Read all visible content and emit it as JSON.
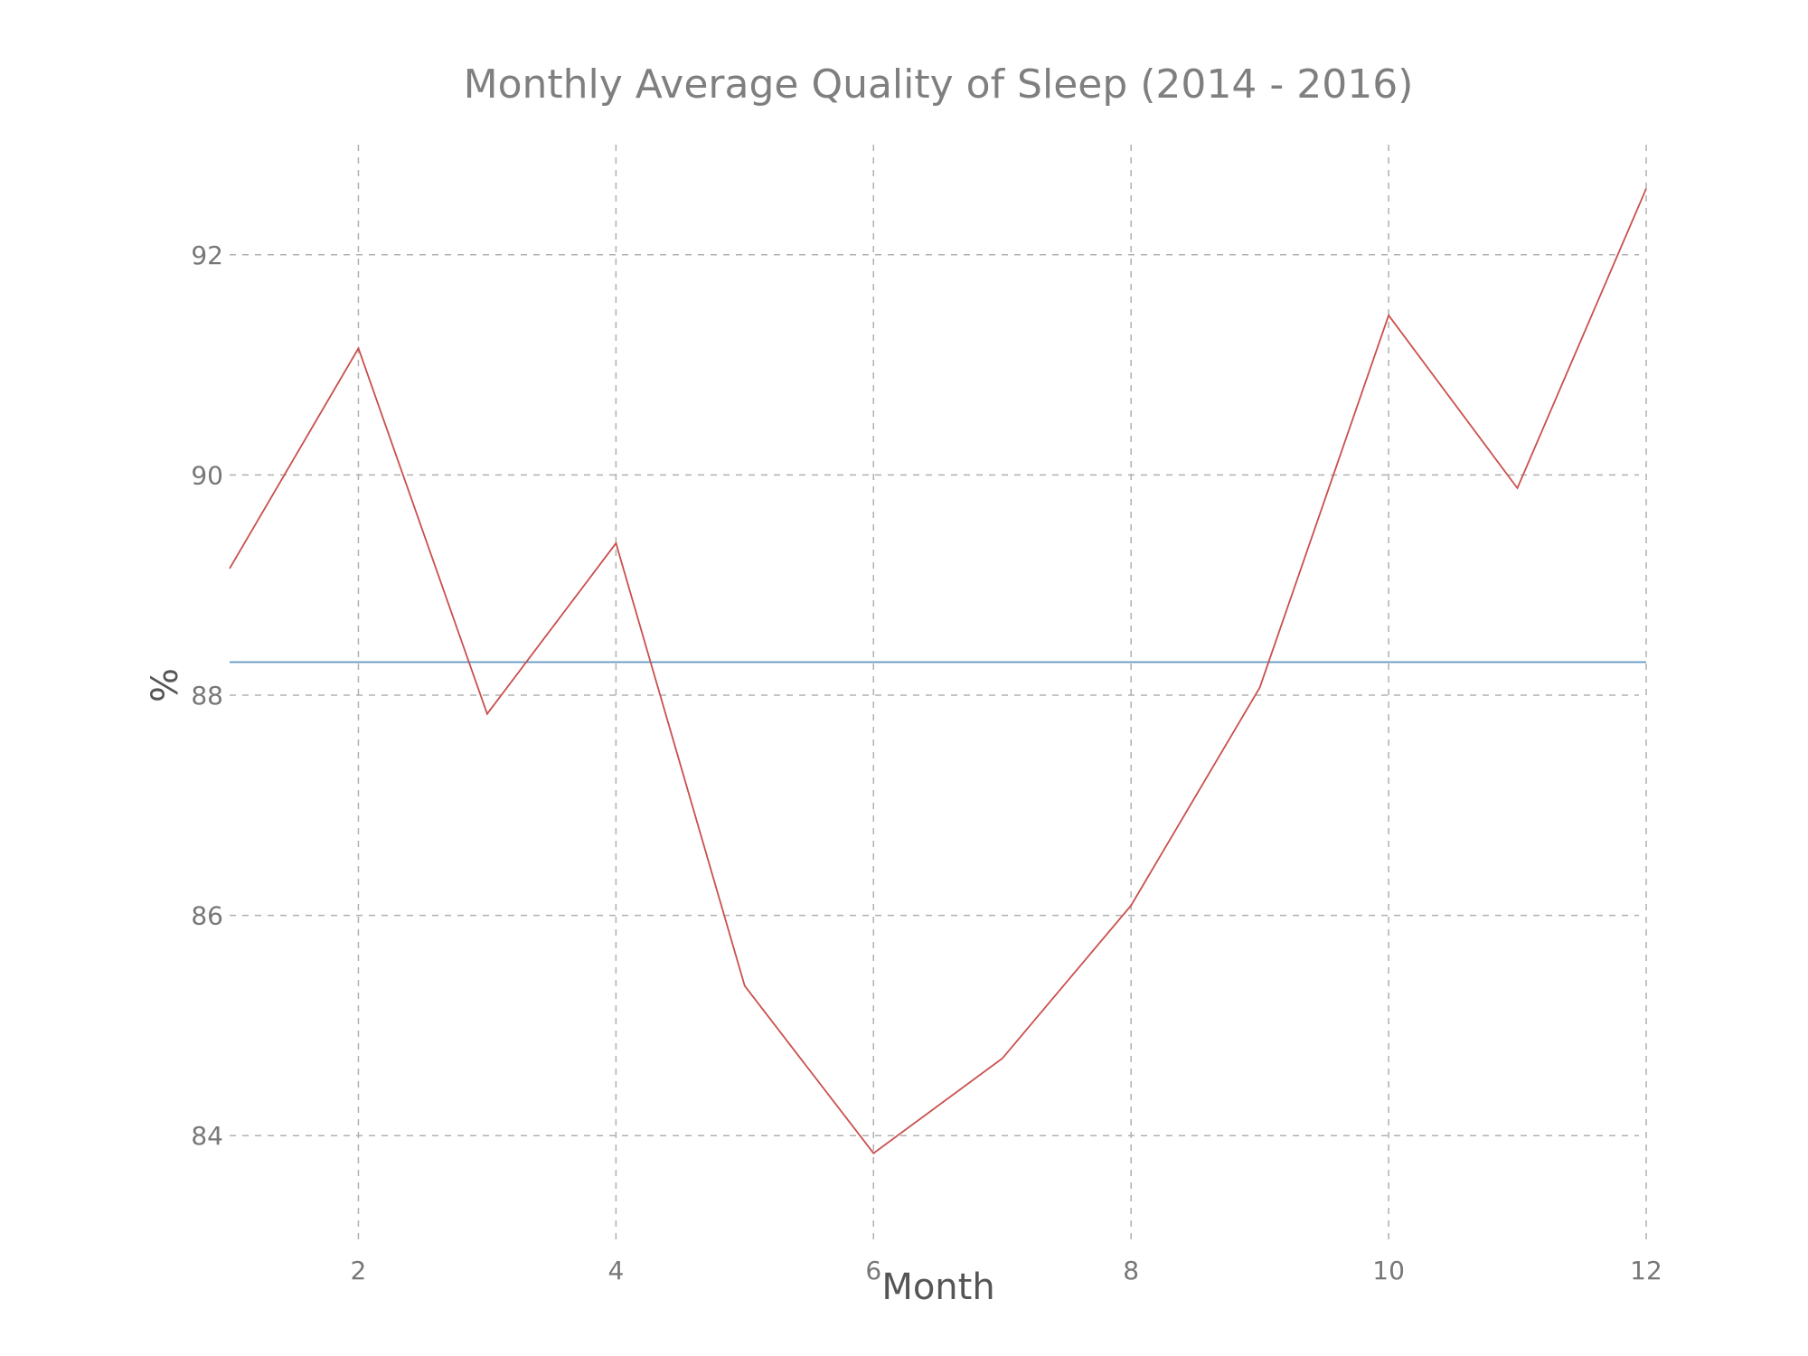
{
  "chart_data": {
    "type": "line",
    "title": "Monthly Average Quality of Sleep (2014 - 2016)",
    "xlabel": "Month",
    "ylabel": "%",
    "xlim": [
      1,
      12
    ],
    "ylim": [
      83,
      93
    ],
    "x_ticks": [
      2,
      4,
      6,
      8,
      10,
      12
    ],
    "y_ticks": [
      84,
      86,
      88,
      90,
      92
    ],
    "grid": true,
    "series": [
      {
        "x": [
          1,
          2,
          3,
          4,
          5,
          6,
          7,
          8,
          9,
          10,
          11,
          12
        ],
        "values": [
          89.15,
          91.15,
          87.83,
          89.38,
          85.36,
          83.84,
          84.7,
          86.09,
          88.07,
          91.45,
          89.88,
          92.6
        ],
        "color": "#c9504e"
      }
    ],
    "reference_line": {
      "y": 88.3,
      "color": "#6a9bc3"
    }
  }
}
